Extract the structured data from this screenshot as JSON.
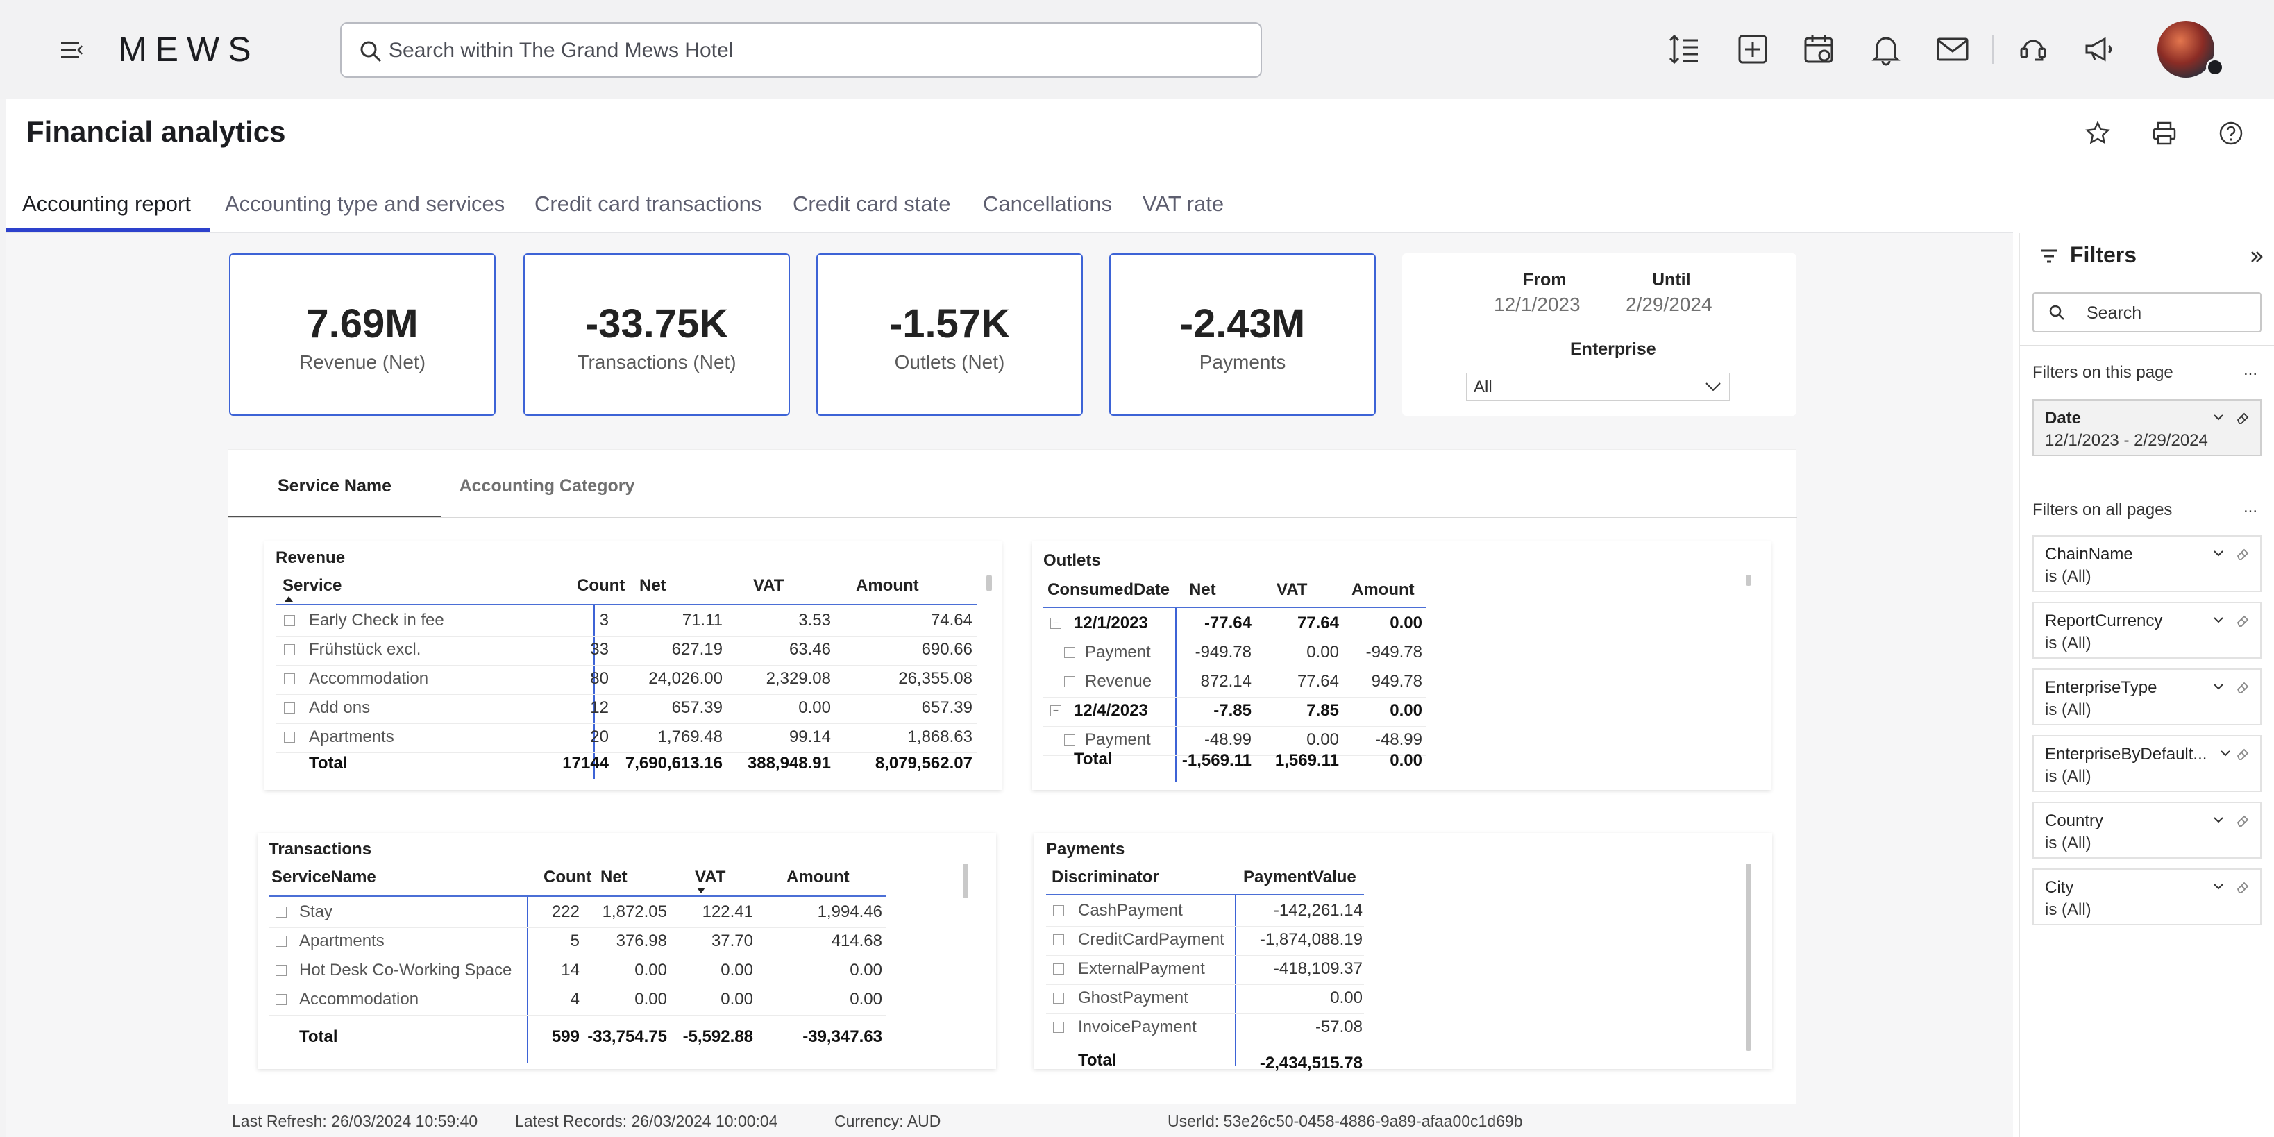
{
  "app": {
    "brand": "MEWS",
    "search_placeholder": "Search within The Grand Mews Hotel"
  },
  "page": {
    "title": "Financial analytics",
    "tabs": [
      "Accounting report",
      "Accounting type and services",
      "Credit card transactions",
      "Credit card state",
      "Cancellations",
      "VAT rate"
    ]
  },
  "kpis": [
    {
      "value": "7.69M",
      "label": "Revenue (Net)"
    },
    {
      "value": "-33.75K",
      "label": "Transactions (Net)"
    },
    {
      "value": "-1.57K",
      "label": "Outlets (Net)"
    },
    {
      "value": "-2.43M",
      "label": "Payments"
    }
  ],
  "date_filter": {
    "from_label": "From",
    "from_value": "12/1/2023",
    "until_label": "Until",
    "until_value": "2/29/2024",
    "enterprise_label": "Enterprise",
    "enterprise_value": "All"
  },
  "subtabs": [
    "Service Name",
    "Accounting Category"
  ],
  "revenue": {
    "title": "Revenue",
    "headers": [
      "Service",
      "Count",
      "Net",
      "VAT",
      "Amount"
    ],
    "rows": [
      [
        "Early Check in fee",
        "3",
        "71.11",
        "3.53",
        "74.64"
      ],
      [
        "Frühstück excl.",
        "33",
        "627.19",
        "63.46",
        "690.66"
      ],
      [
        "Accommodation",
        "80",
        "24,026.00",
        "2,329.08",
        "26,355.08"
      ],
      [
        "Add ons",
        "12",
        "657.39",
        "0.00",
        "657.39"
      ],
      [
        "Apartments",
        "20",
        "1,769.48",
        "99.14",
        "1,868.63"
      ]
    ],
    "total": [
      "Total",
      "17144",
      "7,690,613.16",
      "388,948.91",
      "8,079,562.07"
    ]
  },
  "outlets": {
    "title": "Outlets",
    "headers": [
      "ConsumedDate",
      "Net",
      "VAT",
      "Amount"
    ],
    "rows": [
      {
        "level": 0,
        "cells": [
          "12/1/2023",
          "-77.64",
          "77.64",
          "0.00"
        ]
      },
      {
        "level": 1,
        "cells": [
          "Payment",
          "-949.78",
          "0.00",
          "-949.78"
        ]
      },
      {
        "level": 1,
        "cells": [
          "Revenue",
          "872.14",
          "77.64",
          "949.78"
        ]
      },
      {
        "level": 0,
        "cells": [
          "12/4/2023",
          "-7.85",
          "7.85",
          "0.00"
        ]
      },
      {
        "level": 1,
        "cells": [
          "Payment",
          "-48.99",
          "0.00",
          "-48.99"
        ]
      }
    ],
    "total": [
      "Total",
      "-1,569.11",
      "1,569.11",
      "0.00"
    ]
  },
  "transactions": {
    "title": "Transactions",
    "headers": [
      "ServiceName",
      "Count",
      "Net",
      "VAT",
      "Amount"
    ],
    "rows": [
      [
        "Stay",
        "222",
        "1,872.05",
        "122.41",
        "1,994.46"
      ],
      [
        "Apartments",
        "5",
        "376.98",
        "37.70",
        "414.68"
      ],
      [
        "Hot Desk Co-Working Space",
        "14",
        "0.00",
        "0.00",
        "0.00"
      ],
      [
        "Accommodation",
        "4",
        "0.00",
        "0.00",
        "0.00"
      ]
    ],
    "total": [
      "Total",
      "599",
      "-33,754.75",
      "-5,592.88",
      "-39,347.63"
    ]
  },
  "payments": {
    "title": "Payments",
    "headers": [
      "Discriminator",
      "PaymentValue"
    ],
    "rows": [
      [
        "CashPayment",
        "-142,261.14"
      ],
      [
        "CreditCardPayment",
        "-1,874,088.19"
      ],
      [
        "ExternalPayment",
        "-418,109.37"
      ],
      [
        "GhostPayment",
        "0.00"
      ],
      [
        "InvoicePayment",
        "-57.08"
      ]
    ],
    "total": [
      "Total",
      "-2,434,515.78"
    ]
  },
  "filters": {
    "title": "Filters",
    "search_placeholder": "Search",
    "on_this_page": "Filters on this page",
    "on_all_pages": "Filters on all pages",
    "more": "...",
    "page_filters": [
      {
        "name": "Date",
        "state": "12/1/2023 - 2/29/2024"
      }
    ],
    "all_filters": [
      {
        "name": "ChainName",
        "state": "is (All)"
      },
      {
        "name": "ReportCurrency",
        "state": "is (All)"
      },
      {
        "name": "EnterpriseType",
        "state": "is (All)"
      },
      {
        "name": "EnterpriseByDefault...",
        "state": "is (All)"
      },
      {
        "name": "Country",
        "state": "is (All)"
      },
      {
        "name": "City",
        "state": "is (All)"
      }
    ]
  },
  "footer": {
    "last_refresh": "Last Refresh: 26/03/2024 10:59:40",
    "latest_records": "Latest Records: 26/03/2024 10:00:04",
    "currency": "Currency: AUD",
    "userid": "UserId: 53e26c50-0458-4886-9a89-afaa00c1d69b"
  },
  "colors": {
    "accent": "#2d41cc",
    "kpi_border": "#3d63d6"
  }
}
